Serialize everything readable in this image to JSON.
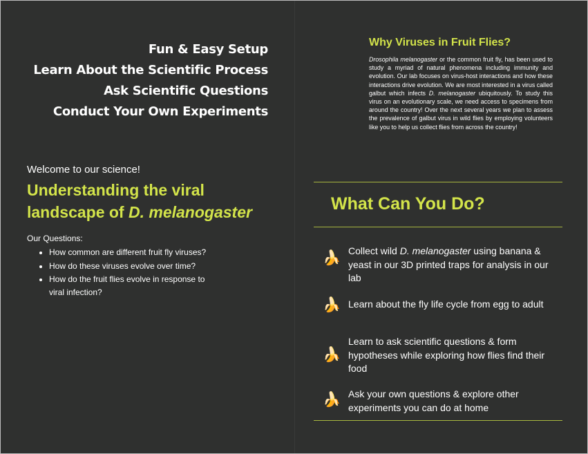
{
  "left": {
    "features": [
      "Fun & Easy Setup",
      "Learn About the Scientific Process",
      "Ask Scientific Questions",
      "Conduct Your Own Experiments"
    ],
    "welcome": "Welcome to our science!",
    "headline_line1": "Understanding the viral",
    "headline_line2_prefix": "landscape of ",
    "headline_line2_em": "D. melanogaster",
    "questions_title": "Our Questions:",
    "questions": [
      "How common are different fruit fly viruses?",
      "How do these viruses evolve over time?",
      "How do the fruit flies evolve in response to viral infection?"
    ]
  },
  "right": {
    "title": "Why Viruses in Fruit Flies?",
    "para": {
      "p1_em": "Drosophila melanogaster",
      "p1": " or the common fruit fly, has been used to study a myriad of natural phenomena including immunity and evolution. Our lab focuses on virus-host interactions and how these interactions drive evolution. We are most interested in a virus called galbut which infects ",
      "p2_em": "D. melanogaster",
      "p2": " ubiquitously. To study this virus on an evolutionary scale, we need access to specimens from around the country! Over the next several years we plan to assess the prevalence of galbut virus in wild flies by employing volunteers like you to help us collect flies from across the country!"
    },
    "what_title": "What Can You Do?",
    "actions": [
      {
        "icon": "banana-icon",
        "prefix": "Collect wild ",
        "em": "D. melanogaster",
        "text": " using banana & yeast in our 3D printed traps for analysis in our lab"
      },
      {
        "icon": "banana-icon",
        "text": "Learn about the fly life cycle from egg to adult"
      },
      {
        "icon": "banana-icon",
        "text": "Learn to ask scientific questions & form hypotheses while exploring how flies find their food"
      },
      {
        "icon": "banana-icon",
        "text": "Ask your own questions & explore other experiments you can do at home"
      }
    ],
    "banana_glyph": "🍌"
  },
  "colors": {
    "background": "#2f302f",
    "accent": "#d3e44a",
    "text": "#ffffff",
    "rule": "#a9b840"
  }
}
